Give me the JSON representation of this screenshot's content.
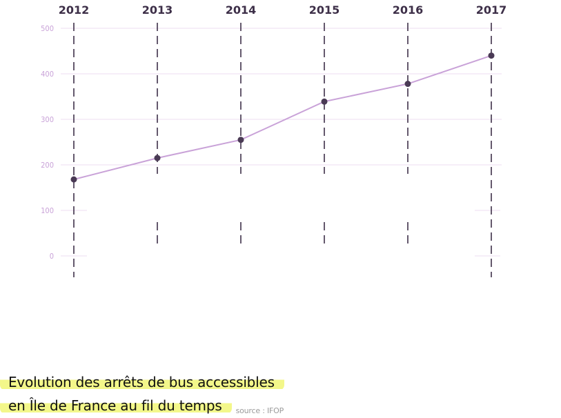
{
  "chart_data": {
    "type": "line",
    "title": "Evolution des arrêts de bus accessibles en Île de France au fil du temps",
    "x": [
      "2012",
      "2013",
      "2014",
      "2015",
      "2016",
      "2017"
    ],
    "values": [
      168,
      215,
      255,
      339,
      378,
      440
    ],
    "yticks": [
      0,
      100,
      200,
      300,
      400,
      500
    ],
    "ylim": [
      0,
      500
    ],
    "grid": true,
    "colors": {
      "line": "#c9a2d8",
      "points": "#4a3a55",
      "year_labels": "#3d2f48",
      "dashes": "#3d2f48",
      "gridlines": "#eddcf2",
      "tick_labels": "#c9a2d8",
      "highlight": "#f3f78a"
    }
  },
  "caption": {
    "line1": "Evolution des arrêts de bus accessibles",
    "line2": "en Île de France au fil du temps",
    "source": "source : IFOP"
  }
}
